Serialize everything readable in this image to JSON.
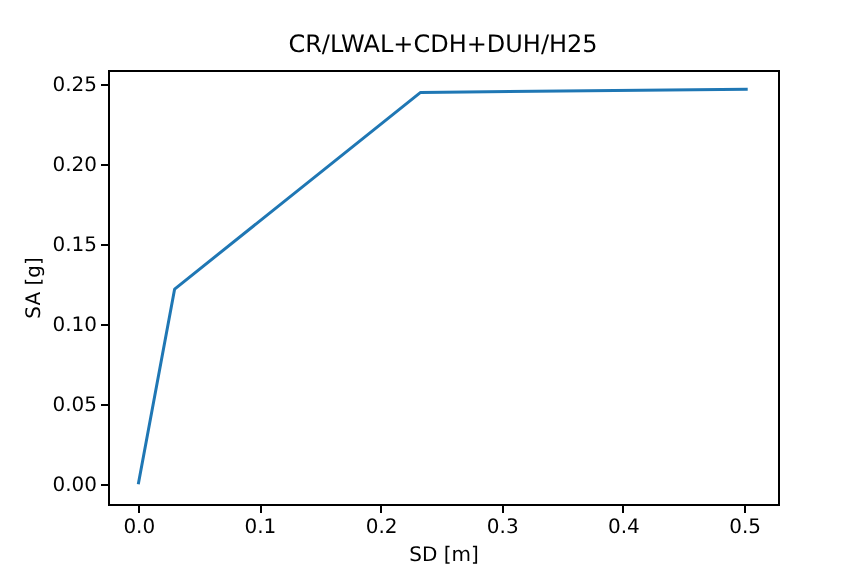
{
  "chart_data": {
    "type": "line",
    "title": "CR/LWAL+CDH+DUH/H25",
    "xlabel": "SD [m]",
    "ylabel": "SA [g]",
    "x": [
      0,
      0.03,
      0.233,
      0.503
    ],
    "series": [
      {
        "color": "#1f77b4",
        "values": [
          0,
          0.122,
          0.245,
          0.247
        ]
      }
    ],
    "xlim": [
      -0.025,
      0.528
    ],
    "ylim": [
      -0.0124,
      0.259
    ],
    "xticks": [
      {
        "value": 0,
        "label": "0.0"
      },
      {
        "value": 0.1,
        "label": "0.1"
      },
      {
        "value": 0.2,
        "label": "0.2"
      },
      {
        "value": 0.3,
        "label": "0.3"
      },
      {
        "value": 0.4,
        "label": "0.4"
      },
      {
        "value": 0.5,
        "label": "0.5"
      }
    ],
    "yticks": [
      {
        "value": 0,
        "label": "0.00"
      },
      {
        "value": 0.05,
        "label": "0.05"
      },
      {
        "value": 0.1,
        "label": "0.10"
      },
      {
        "value": 0.15,
        "label": "0.15"
      },
      {
        "value": 0.2,
        "label": "0.20"
      },
      {
        "value": 0.25,
        "label": "0.25"
      }
    ],
    "grid": false,
    "marker": "none",
    "line_style": "solid"
  }
}
